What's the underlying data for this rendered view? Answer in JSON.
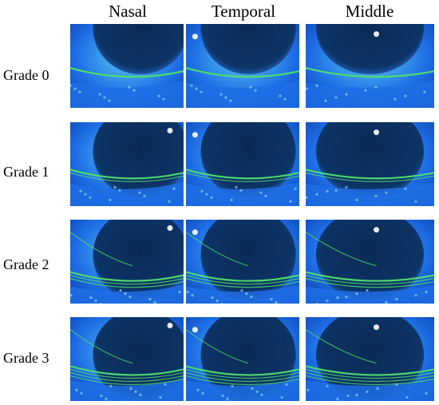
{
  "figure": {
    "columns": [
      "Nasal",
      "Temporal",
      "Middle"
    ],
    "rows": [
      "Grade 0",
      "Grade 1",
      "Grade 2",
      "Grade 3"
    ],
    "colors": {
      "background_blue": "#1e6ee6",
      "deep_blue": "#0b3fa8",
      "iris_dark": "#0d3466",
      "pupil_dark": "#0a2a55",
      "fluorescein_green": "#4ee06a",
      "sclera_light": "#58c8f0",
      "highlight": "#ffffff"
    }
  }
}
